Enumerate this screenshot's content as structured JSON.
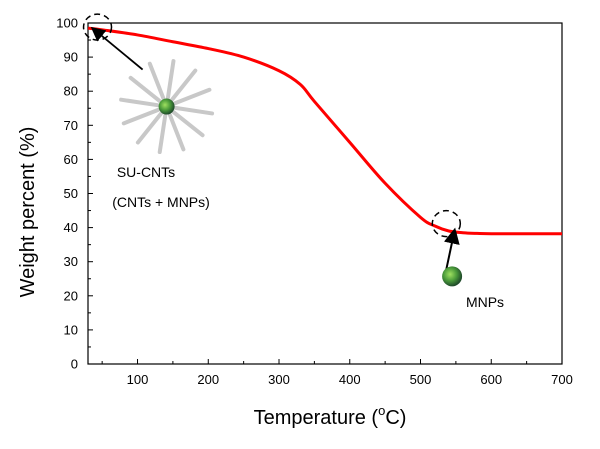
{
  "chart_data": {
    "type": "line",
    "xlabel": "Temperature (",
    "xlabel_sup": "o",
    "xlabel_unit": "C)",
    "ylabel": "Weight percent (%)",
    "xlim": [
      30,
      700
    ],
    "ylim": [
      0,
      100
    ],
    "x_ticks": [
      100,
      200,
      300,
      400,
      500,
      600,
      700
    ],
    "y_ticks": [
      0,
      10,
      20,
      30,
      40,
      50,
      60,
      70,
      80,
      90,
      100
    ],
    "grid": false,
    "series": [
      {
        "color": "#ff0000",
        "x": [
          30,
          50,
          100,
          150,
          200,
          250,
          300,
          330,
          350,
          400,
          450,
          500,
          520,
          540,
          560,
          580,
          600,
          650,
          700
        ],
        "y": [
          98.5,
          98,
          96.5,
          94.5,
          92.5,
          90,
          86,
          82,
          77,
          65,
          53,
          43,
          40.5,
          39,
          38.5,
          38.3,
          38.2,
          38.2,
          38.2
        ]
      }
    ],
    "annotations": [
      {
        "text": "SU-CNTs",
        "marker_x": 35,
        "marker_y": 98.5,
        "label_x": 110,
        "label_y": 75.5
      },
      {
        "text": "(CNTs + MNPs)"
      },
      {
        "text": "MNPs",
        "marker_x": 528,
        "marker_y": 40,
        "label_x": 580,
        "label_y": 26
      }
    ]
  },
  "colors": {
    "curve": "#ff0000",
    "axis": "#000000",
    "nanotube": "#c8c8c8",
    "particle_dark": "#1a5a3a",
    "particle_light": "#7ec84a"
  }
}
